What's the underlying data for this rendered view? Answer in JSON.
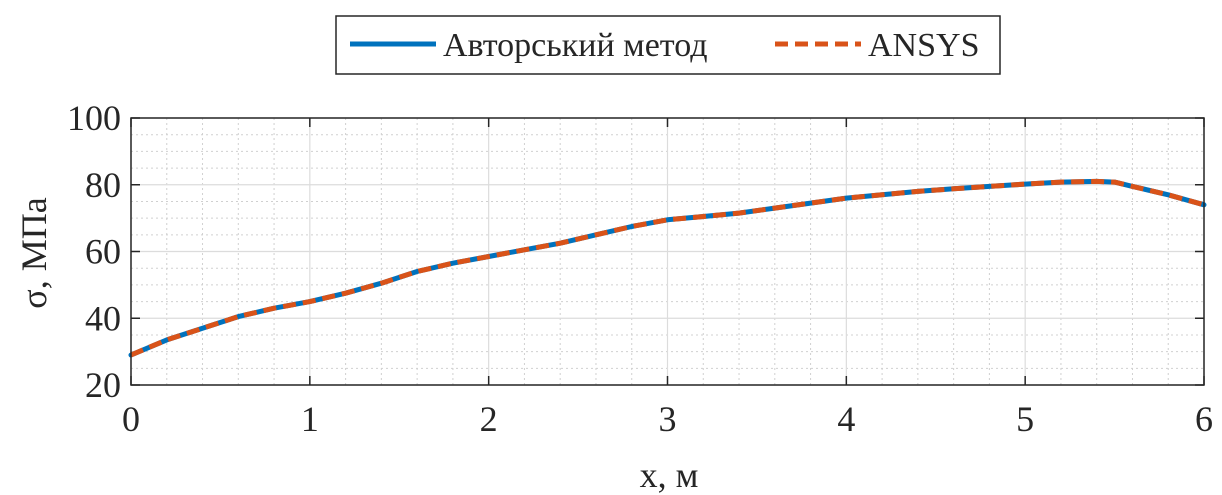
{
  "chart_data": {
    "type": "line",
    "xlabel": "x, м",
    "ylabel": "σ, МПа",
    "xlim": [
      0,
      6
    ],
    "ylim": [
      20,
      100
    ],
    "xticks": [
      "0",
      "1",
      "2",
      "3",
      "4",
      "5",
      "6"
    ],
    "yticks": [
      "20",
      "40",
      "60",
      "80",
      "100"
    ],
    "grid": true,
    "minor_grid": true,
    "legend_placement": "top-center, outside",
    "series": [
      {
        "name": "Авторський метод",
        "color": "#0072BD",
        "style": "solid",
        "x": [
          0,
          0.2,
          0.4,
          0.6,
          0.8,
          1.0,
          1.2,
          1.4,
          1.6,
          1.8,
          2.0,
          2.2,
          2.4,
          2.6,
          2.8,
          3.0,
          3.2,
          3.4,
          3.6,
          3.8,
          4.0,
          4.2,
          4.4,
          4.6,
          4.8,
          5.0,
          5.2,
          5.4,
          5.5,
          5.6,
          5.8,
          6.0
        ],
        "y": [
          29,
          33.5,
          37,
          40.5,
          43,
          45,
          47.5,
          50.5,
          54,
          56.5,
          58.5,
          60.5,
          62.5,
          65,
          67.5,
          69.5,
          70.5,
          71.5,
          73,
          74.5,
          76,
          77,
          78,
          78.8,
          79.5,
          80.2,
          80.8,
          81,
          80.8,
          79.5,
          77,
          74
        ]
      },
      {
        "name": "ANSYS",
        "color": "#D95319",
        "style": "dashed",
        "x": [
          0,
          0.2,
          0.4,
          0.6,
          0.8,
          1.0,
          1.2,
          1.4,
          1.6,
          1.8,
          2.0,
          2.2,
          2.4,
          2.6,
          2.8,
          3.0,
          3.2,
          3.4,
          3.6,
          3.8,
          4.0,
          4.2,
          4.4,
          4.6,
          4.8,
          5.0,
          5.2,
          5.4,
          5.5,
          5.6,
          5.8,
          6.0
        ],
        "y": [
          29,
          33.5,
          37,
          40.5,
          43,
          45,
          47.5,
          50.5,
          54,
          56.5,
          58.5,
          60.5,
          62.5,
          65,
          67.5,
          69.5,
          70.5,
          71.5,
          73,
          74.5,
          76,
          77,
          78,
          78.8,
          79.5,
          80.2,
          80.8,
          81,
          80.8,
          79.5,
          77,
          74
        ]
      }
    ]
  }
}
